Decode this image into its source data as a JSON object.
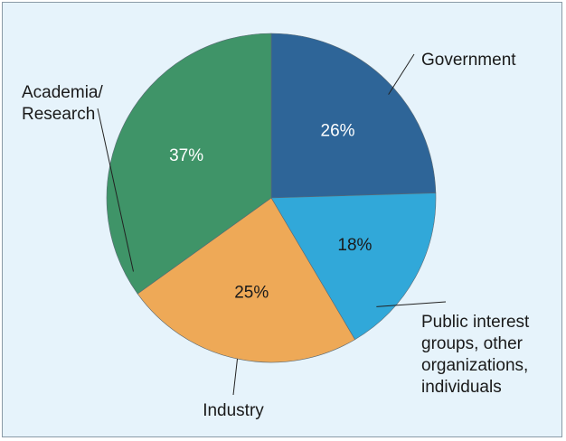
{
  "chart_data": {
    "type": "pie",
    "slices": [
      {
        "label": [
          "Government"
        ],
        "value": 26,
        "value_label": "26%",
        "color": "#2e6598",
        "text_color": "#ffffff"
      },
      {
        "label": [
          "Public interest",
          "groups, other",
          "organizations,",
          "individuals"
        ],
        "value": 18,
        "value_label": "18%",
        "color": "#31a8d9",
        "text_color": "#1a1a1a"
      },
      {
        "label": [
          "Industry"
        ],
        "value": 25,
        "value_label": "25%",
        "color": "#eea957",
        "text_color": "#1a1a1a"
      },
      {
        "label": [
          "Academia/",
          "Research"
        ],
        "value": 37,
        "value_label": "37%",
        "color": "#3f9468",
        "text_color": "#ffffff"
      }
    ],
    "start_angle": "12 o'clock",
    "direction": "clockwise",
    "background": "#e6f3fb"
  }
}
